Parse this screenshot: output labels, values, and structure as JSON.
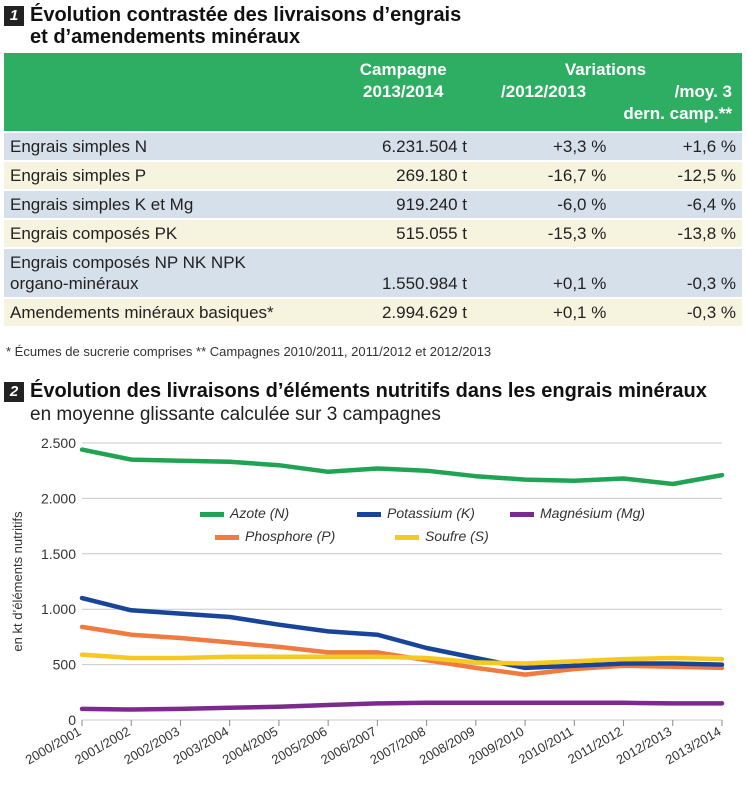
{
  "table_section": {
    "number": "1",
    "title_line1": "Évolution contrastée des livraisons d’engrais",
    "title_line2": "et d’amendements minéraux",
    "headers": {
      "campaign_line1": "Campagne",
      "campaign_line2": "2013/2014",
      "variations": "Variations",
      "var_prev_year": "/2012/2013",
      "var_avg_line1": "/moy. 3",
      "var_avg_line2": "dern. camp.**"
    },
    "rows": [
      {
        "label": "Engrais simples N",
        "campaign": "6.231.504 t",
        "var_prev": "+3,3 %",
        "var_avg": "+1,6 %"
      },
      {
        "label": "Engrais simples P",
        "campaign": "269.180 t",
        "var_prev": "-16,7 %",
        "var_avg": "-12,5 %"
      },
      {
        "label": "Engrais simples K et Mg",
        "campaign": "919.240 t",
        "var_prev": "-6,0 %",
        "var_avg": "-6,4 %"
      },
      {
        "label": "Engrais composés PK",
        "campaign": "515.055 t",
        "var_prev": "-15,3 %",
        "var_avg": "-13,8 %"
      },
      {
        "label_line1": "Engrais composés NP NK NPK",
        "label_line2": "organo-minéraux",
        "campaign": "1.550.984 t",
        "var_prev": "+0,1 %",
        "var_avg": "-0,3 %"
      },
      {
        "label": "Amendements minéraux basiques*",
        "campaign": "2.994.629 t",
        "var_prev": "+0,1 %",
        "var_avg": "-0,3 %"
      }
    ],
    "footnote": "* Écumes de sucrerie comprises ** Campagnes 2010/2011, 2011/2012 et 2012/2013",
    "colors": {
      "header_green": "#2eae62",
      "row_blue": "#d6e0ea",
      "row_cream": "#f6f3df"
    }
  },
  "chart_section": {
    "number": "2",
    "title": "Évolution des livraisons d’éléments nutritifs dans les engrais minéraux",
    "subtitle": "en moyenne glissante calculée sur 3 campagnes"
  },
  "chart_data": {
    "type": "line",
    "ylabel": "en kt d’éléments nutritifs",
    "ylim": [
      0,
      2500
    ],
    "yticks": [
      0,
      500,
      1000,
      1500,
      2000,
      2500
    ],
    "ytick_labels": [
      "0",
      "500",
      "1.000",
      "1.500",
      "2.000",
      "2.500"
    ],
    "grid": true,
    "legend_position": "inside-upper-middle",
    "categories": [
      "2000/2001",
      "2001/2002",
      "2002/2003",
      "2003/2004",
      "2004/2005",
      "2005/2006",
      "2006/2007",
      "2007/2008",
      "2008/2009",
      "2009/2010",
      "2010/2011",
      "2011/2012",
      "2012/2013",
      "2013/2014"
    ],
    "series": [
      {
        "name": "Azote (N)",
        "color": "#21a354",
        "values": [
          2440,
          2350,
          2340,
          2330,
          2300,
          2240,
          2270,
          2250,
          2200,
          2170,
          2160,
          2180,
          2130,
          2210
        ]
      },
      {
        "name": "Phosphore (P)",
        "color": "#f07a3f",
        "values": [
          840,
          770,
          740,
          700,
          660,
          610,
          610,
          540,
          470,
          410,
          460,
          490,
          480,
          470
        ]
      },
      {
        "name": "Potassium (K)",
        "color": "#18449a",
        "values": [
          1100,
          990,
          960,
          930,
          860,
          800,
          770,
          650,
          560,
          470,
          490,
          510,
          510,
          500
        ]
      },
      {
        "name": "Soufre (S)",
        "color": "#f6c91e",
        "values": [
          590,
          560,
          560,
          570,
          570,
          570,
          570,
          560,
          520,
          510,
          530,
          550,
          560,
          550
        ]
      },
      {
        "name": "Magnésium (Mg)",
        "color": "#7b2b8c",
        "values": [
          100,
          95,
          100,
          110,
          120,
          135,
          150,
          155,
          155,
          155,
          155,
          155,
          150,
          150
        ]
      }
    ]
  }
}
